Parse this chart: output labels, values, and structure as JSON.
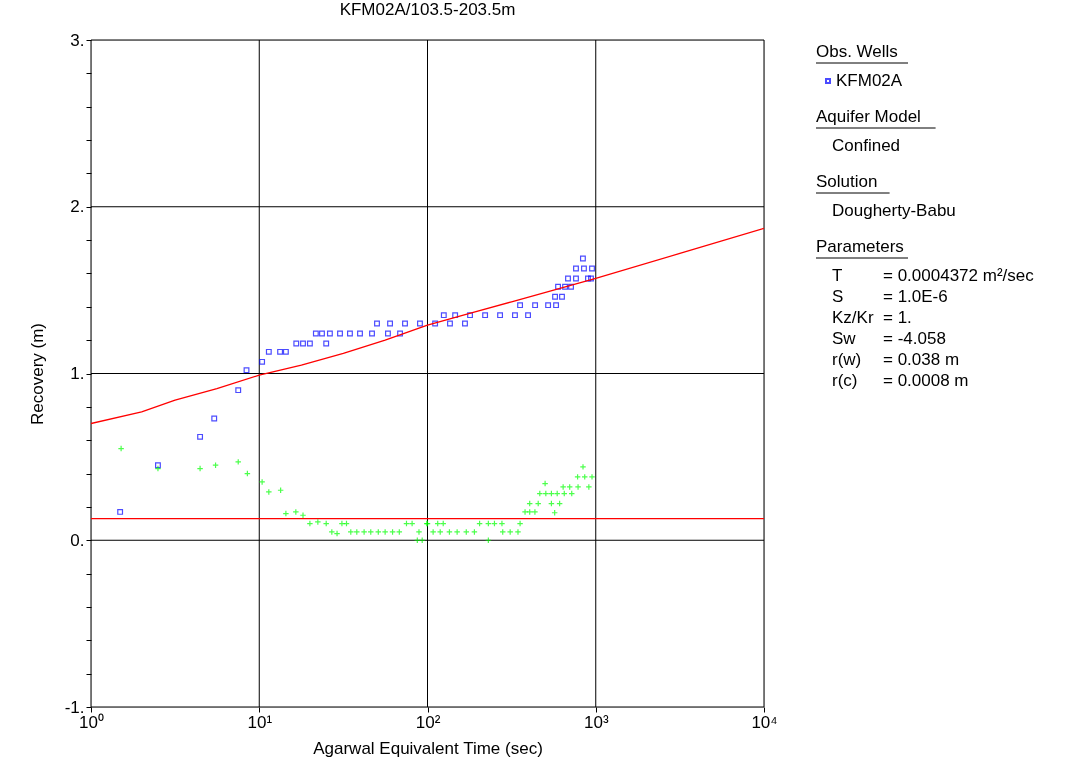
{
  "chart_data": {
    "type": "scatter",
    "title": "KFM02A/103.5-203.5m",
    "xlabel": "Agarwal Equivalent Time (sec)",
    "ylabel": "Recovery (m)",
    "log": "x",
    "xlim": [
      1,
      10000
    ],
    "xticks": [
      {
        "value": 1,
        "label": "10⁰"
      },
      {
        "value": 10,
        "label": "10¹"
      },
      {
        "value": 100,
        "label": "10²"
      },
      {
        "value": 1000,
        "label": "10³"
      },
      {
        "value": 10000,
        "label": "10⁴"
      }
    ],
    "ylim": [
      -1,
      3
    ],
    "yticks": [
      {
        "value": -1,
        "label": "-1."
      },
      {
        "value": -0.8,
        "label": null
      },
      {
        "value": -0.6,
        "label": null
      },
      {
        "value": -0.4,
        "label": null
      },
      {
        "value": -0.2,
        "label": null
      },
      {
        "value": 0,
        "label": "0."
      },
      {
        "value": 0.2,
        "label": null
      },
      {
        "value": 0.4,
        "label": null
      },
      {
        "value": 0.6,
        "label": null
      },
      {
        "value": 0.8,
        "label": null
      },
      {
        "value": 1,
        "label": "1."
      },
      {
        "value": 1.2,
        "label": null
      },
      {
        "value": 1.4,
        "label": null
      },
      {
        "value": 1.6,
        "label": null
      },
      {
        "value": 1.8,
        "label": null
      },
      {
        "value": 2,
        "label": "2."
      },
      {
        "value": 2.2,
        "label": null
      },
      {
        "value": 2.4,
        "label": null
      },
      {
        "value": 2.6,
        "label": null
      },
      {
        "value": 2.8,
        "label": null
      },
      {
        "value": 3,
        "label": "3."
      }
    ],
    "grid": true,
    "legend": "right",
    "legend_title": "Obs. Wells",
    "series": [
      {
        "name": "KFM02A",
        "color": "#0000ff",
        "type": "scatter",
        "marker": "square",
        "x": [
          1.49,
          2.5,
          4.45,
          5.4,
          7.5,
          8.4,
          10.4,
          11.4,
          13.3,
          14.4,
          16.6,
          18.2,
          20,
          25,
          21.7,
          23.6,
          26.3,
          30.2,
          34.6,
          39.7,
          46.8,
          58.2,
          68.7,
          50.1,
          59.9,
          73.5,
          90.2,
          111,
          136,
          167,
          125,
          146,
          179,
          220,
          270,
          331,
          396,
          355,
          436,
          521,
          581,
          573,
          630,
          597,
          657,
          713,
          684,
          763,
          899,
          937,
          763,
          851,
          950,
          839
        ],
        "values": [
          0.17,
          0.45,
          0.62,
          0.73,
          0.9,
          1.02,
          1.07,
          1.13,
          1.13,
          1.13,
          1.18,
          1.18,
          1.18,
          1.18,
          1.24,
          1.24,
          1.24,
          1.24,
          1.24,
          1.24,
          1.24,
          1.24,
          1.24,
          1.3,
          1.3,
          1.3,
          1.3,
          1.3,
          1.3,
          1.3,
          1.35,
          1.35,
          1.35,
          1.35,
          1.35,
          1.35,
          1.35,
          1.41,
          1.41,
          1.41,
          1.41,
          1.46,
          1.46,
          1.52,
          1.52,
          1.52,
          1.57,
          1.57,
          1.57,
          1.57,
          1.63,
          1.63,
          1.63,
          1.69
        ]
      },
      {
        "color": "#00ff00",
        "type": "scatter",
        "marker": "cross",
        "x": [
          1.51,
          2.5,
          4.45,
          5.5,
          7.5,
          8.5,
          10.4,
          11.4,
          13.4,
          14.4,
          16.5,
          18.2,
          20,
          22.3,
          25,
          27,
          29,
          31,
          33,
          35,
          38,
          42,
          46,
          51,
          56,
          62,
          68,
          75,
          81,
          87,
          89,
          93,
          99,
          100,
          108,
          115,
          124,
          119,
          135,
          150,
          170,
          190,
          204,
          230,
          250,
          277,
          230,
          280,
          310,
          345,
          355,
          380,
          405,
          435,
          405,
          455,
          500,
          465,
          505,
          545,
          570,
          545,
          610,
          590,
          650,
          720,
          640,
          700,
          785,
          840,
          780,
          860,
          950,
          910
        ],
        "values": [
          0.55,
          0.43,
          0.43,
          0.45,
          0.47,
          0.4,
          0.35,
          0.29,
          0.3,
          0.16,
          0.17,
          0.15,
          0.1,
          0.11,
          0.1,
          0.05,
          0.04,
          0.1,
          0.1,
          0.05,
          0.05,
          0.05,
          0.05,
          0.05,
          0.05,
          0.05,
          0.05,
          0.1,
          0.1,
          0.0,
          0.05,
          0.0,
          0.1,
          0.1,
          0.05,
          0.1,
          0.1,
          0.05,
          0.05,
          0.05,
          0.05,
          0.05,
          0.1,
          0.1,
          0.1,
          0.1,
          0.0,
          0.05,
          0.05,
          0.05,
          0.1,
          0.17,
          0.17,
          0.17,
          0.22,
          0.22,
          0.34,
          0.28,
          0.28,
          0.28,
          0.165,
          0.22,
          0.22,
          0.28,
          0.28,
          0.28,
          0.32,
          0.32,
          0.32,
          0.44,
          0.38,
          0.38,
          0.38,
          0.32
        ]
      },
      {
        "color": "#ff0000",
        "type": "line",
        "x": [
          1,
          2,
          3.16,
          5.6,
          10,
          17.8,
          31.6,
          56,
          100,
          178,
          316,
          562,
          1000,
          3162,
          10000
        ],
        "values": [
          0.7,
          0.77,
          0.84,
          0.91,
          0.99,
          1.05,
          1.12,
          1.2,
          1.29,
          1.36,
          1.43,
          1.5,
          1.57,
          1.72,
          1.87
        ]
      }
    ],
    "ref_lines": [
      {
        "axis": "y",
        "value": 0.13,
        "color": "#ff0000"
      }
    ],
    "annotations": [
      "Aquifer Model",
      "Confined",
      "Solution",
      "Dougherty-Babu",
      "Parameters",
      "T = 0.0004372 m²/sec",
      "S = 1.0E-6",
      "Kz/Kr = 1.",
      "Sw = -4.058",
      "r(w) = 0.038 m",
      "r(c) = 0.0008 m"
    ]
  }
}
